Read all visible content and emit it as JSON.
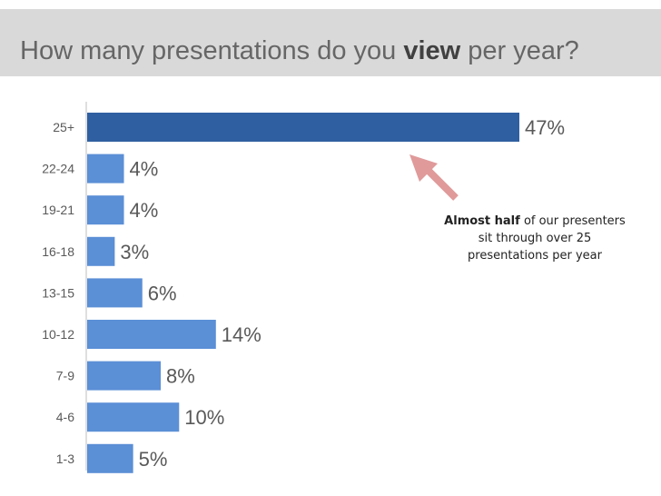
{
  "header": {
    "title_before": "How many presentations do you",
    "title_emphasis": "view",
    "title_after": "per year?"
  },
  "annotation": {
    "emphasis": "Almost half",
    "text": "of our presenters sit through over 25 presentations per year"
  },
  "chart_data": {
    "type": "bar",
    "orientation": "horizontal",
    "categories": [
      "25+",
      "22-24",
      "19-21",
      "16-18",
      "13-15",
      "10-12",
      "7-9",
      "4-6",
      "1-3"
    ],
    "values": [
      47,
      4,
      4,
      3,
      6,
      14,
      8,
      10,
      5
    ],
    "labels": [
      "47%",
      "4%",
      "4%",
      "3%",
      "6%",
      "14%",
      "8%",
      "10%",
      "5%"
    ],
    "highlight_category": "25+",
    "colors": {
      "bar": "#5b8fd6",
      "highlight": "#2f5fa0",
      "arrow": "#e09a9a",
      "header_bg": "#d9d9d9"
    },
    "xlim": [
      0,
      47
    ],
    "title": "",
    "xlabel": "",
    "ylabel": ""
  }
}
